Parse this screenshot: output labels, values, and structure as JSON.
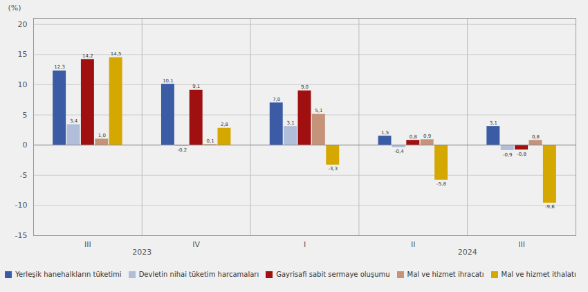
{
  "chart_data": {
    "type": "bar",
    "categories": [
      "III",
      "IV",
      "I",
      "II",
      "III"
    ],
    "series": [
      {
        "name": "Yerleşik hanehalkların tüketimi",
        "color": "#3B5BA5",
        "values": [
          12.3,
          10.1,
          7.0,
          1.5,
          3.1
        ],
        "value_labels": [
          "12,3",
          "10,1",
          "7,0",
          "1,5",
          "3,1"
        ]
      },
      {
        "name": "Devletin nihai tüketim harcamaları",
        "color": "#B0BED9",
        "values": [
          3.4,
          -0.2,
          3.1,
          -0.4,
          -0.9
        ],
        "value_labels": [
          "3,4",
          "-0,2",
          "3,1",
          "-0,4",
          "-0,9"
        ]
      },
      {
        "name": "Gayrisafi sabit sermaye oluşumu",
        "color": "#A01010",
        "values": [
          14.2,
          9.1,
          9.0,
          0.8,
          -0.8
        ],
        "value_labels": [
          "14,2",
          "9,1",
          "9,0",
          "0,8",
          "-0,8"
        ]
      },
      {
        "name": "Mal ve hizmet ihracatı",
        "color": "#C4937A",
        "values": [
          1.0,
          0.1,
          5.1,
          0.9,
          0.8
        ],
        "value_labels": [
          "1,0",
          "0,1",
          "5,1",
          "0,9",
          "0,8"
        ]
      },
      {
        "name": "Mal ve hizmet ithalatı",
        "color": "#D4A800",
        "values": [
          14.5,
          2.8,
          -3.3,
          -5.8,
          -9.6
        ],
        "value_labels": [
          "14,5",
          "2,8",
          "-3,3",
          "-5,8",
          "-9,6"
        ]
      }
    ],
    "ylim": [
      -15,
      21
    ],
    "yticks": [
      -15,
      -10,
      -5,
      0,
      5,
      10,
      15,
      20
    ],
    "ylabel": "(%)",
    "grid": true,
    "legend": "bottom",
    "data_labels": true,
    "annotations": [
      {
        "text": "2023",
        "x": 0.5
      },
      {
        "text": "2024",
        "x": 3.5
      }
    ]
  }
}
